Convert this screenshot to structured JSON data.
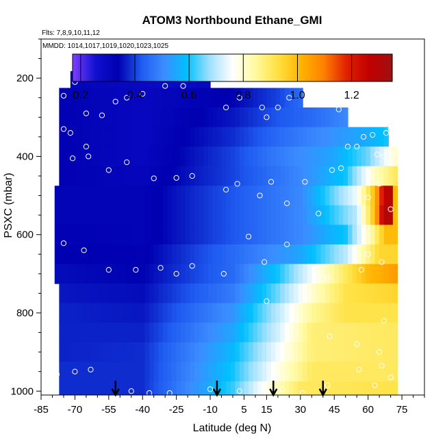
{
  "chart_data": {
    "type": "heatmap",
    "title": "ATOM3 Northbound Ethane_GMI",
    "flights_note": "Flts: 7,8,9,10,11,12",
    "dates_note": "MMDD: 1014,1017,1019,1020,1023,1025",
    "xlabel": "Latitude (deg N)",
    "ylabel": "PSXC (mbar)",
    "xlim": [
      -85,
      85
    ],
    "ylim": [
      1010,
      100
    ],
    "x_ticks": [
      -85,
      -70,
      -55,
      -40,
      -25,
      -10,
      5,
      15,
      30,
      45,
      60,
      75
    ],
    "y_ticks": [
      200,
      400,
      600,
      800,
      1000
    ],
    "colorbar": {
      "range": [
        0.17,
        1.35
      ],
      "ticks": [
        0.2,
        0.4,
        0.6,
        0.8,
        1.0,
        1.2
      ],
      "tick_labels": [
        "0.2",
        "0.4",
        "0.6",
        "0.8",
        "1.0",
        "1.2"
      ],
      "colors": [
        "#7f3fff",
        "#1010d0",
        "#0000b0",
        "#1e5af0",
        "#3c8cff",
        "#00c0ff",
        "#a0e0ff",
        "#ffffff",
        "#fffaa0",
        "#ffe040",
        "#ffb400",
        "#ff8000",
        "#e02000",
        "#c00000",
        "#a01010"
      ]
    },
    "profiles": [
      {
        "p": 200,
        "x_start": -72,
        "x_end": -10,
        "values": [
          [
            -72,
            0.32
          ],
          [
            -30,
            0.28
          ],
          [
            -10,
            0.3
          ]
        ]
      },
      {
        "p": 250,
        "x_start": -77,
        "x_end": 30,
        "values": [
          [
            -77,
            0.33
          ],
          [
            -40,
            0.3
          ],
          [
            0,
            0.34
          ],
          [
            20,
            0.4
          ],
          [
            30,
            0.45
          ]
        ]
      },
      {
        "p": 300,
        "x_start": -77,
        "x_end": 50,
        "values": [
          [
            -77,
            0.33
          ],
          [
            -40,
            0.3
          ],
          [
            0,
            0.36
          ],
          [
            20,
            0.42
          ],
          [
            35,
            0.45
          ],
          [
            50,
            0.5
          ]
        ]
      },
      {
        "p": 350,
        "x_start": -77,
        "x_end": 68,
        "values": [
          [
            -77,
            0.33
          ],
          [
            -40,
            0.3
          ],
          [
            0,
            0.38
          ],
          [
            20,
            0.45
          ],
          [
            45,
            0.52
          ],
          [
            60,
            0.56
          ],
          [
            68,
            0.6
          ]
        ]
      },
      {
        "p": 400,
        "x_start": -77,
        "x_end": 72,
        "values": [
          [
            -77,
            0.33
          ],
          [
            -40,
            0.3
          ],
          [
            0,
            0.4
          ],
          [
            20,
            0.48
          ],
          [
            45,
            0.55
          ],
          [
            60,
            0.65
          ],
          [
            72,
            0.8
          ]
        ]
      },
      {
        "p": 450,
        "x_start": -77,
        "x_end": 72,
        "values": [
          [
            -77,
            0.33
          ],
          [
            -40,
            0.31
          ],
          [
            0,
            0.4
          ],
          [
            30,
            0.5
          ],
          [
            50,
            0.6
          ],
          [
            62,
            0.8
          ],
          [
            72,
            0.9
          ]
        ]
      },
      {
        "p": 500,
        "x_start": -79,
        "x_end": 72,
        "values": [
          [
            -79,
            0.32
          ],
          [
            -40,
            0.32
          ],
          [
            0,
            0.42
          ],
          [
            30,
            0.5
          ],
          [
            55,
            0.75
          ],
          [
            63,
            1.0
          ],
          [
            67,
            1.25
          ],
          [
            70,
            1.3
          ],
          [
            72,
            1.0
          ]
        ]
      },
      {
        "p": 550,
        "x_start": -79,
        "x_end": 72,
        "values": [
          [
            -79,
            0.32
          ],
          [
            -40,
            0.32
          ],
          [
            0,
            0.42
          ],
          [
            30,
            0.5
          ],
          [
            55,
            0.7
          ],
          [
            63,
            1.0
          ],
          [
            67,
            1.3
          ],
          [
            70,
            1.3
          ],
          [
            72,
            1.0
          ]
        ]
      },
      {
        "p": 600,
        "x_start": -79,
        "x_end": 72,
        "values": [
          [
            -79,
            0.33
          ],
          [
            -40,
            0.32
          ],
          [
            0,
            0.42
          ],
          [
            30,
            0.5
          ],
          [
            50,
            0.6
          ],
          [
            62,
            0.85
          ],
          [
            68,
            1.0
          ],
          [
            72,
            1.0
          ]
        ]
      },
      {
        "p": 650,
        "x_start": -79,
        "x_end": 72,
        "values": [
          [
            -79,
            0.34
          ],
          [
            -40,
            0.33
          ],
          [
            0,
            0.45
          ],
          [
            30,
            0.55
          ],
          [
            50,
            0.7
          ],
          [
            65,
            0.95
          ],
          [
            72,
            0.95
          ]
        ]
      },
      {
        "p": 700,
        "x_start": -79,
        "x_end": 72,
        "values": [
          [
            -79,
            0.35
          ],
          [
            -40,
            0.34
          ],
          [
            0,
            0.45
          ],
          [
            20,
            0.6
          ],
          [
            40,
            0.8
          ],
          [
            60,
            1.0
          ],
          [
            72,
            1.05
          ]
        ]
      },
      {
        "p": 750,
        "x_start": -77,
        "x_end": 72,
        "values": [
          [
            -77,
            0.36
          ],
          [
            -40,
            0.35
          ],
          [
            0,
            0.48
          ],
          [
            20,
            0.65
          ],
          [
            35,
            0.8
          ],
          [
            50,
            0.92
          ],
          [
            72,
            0.95
          ]
        ]
      },
      {
        "p": 800,
        "x_start": -77,
        "x_end": 72,
        "values": [
          [
            -77,
            0.37
          ],
          [
            -40,
            0.36
          ],
          [
            0,
            0.52
          ],
          [
            20,
            0.7
          ],
          [
            35,
            0.85
          ],
          [
            50,
            0.92
          ],
          [
            72,
            0.92
          ]
        ]
      },
      {
        "p": 850,
        "x_start": -77,
        "x_end": 72,
        "values": [
          [
            -77,
            0.37
          ],
          [
            -40,
            0.37
          ],
          [
            0,
            0.55
          ],
          [
            20,
            0.72
          ],
          [
            35,
            0.88
          ],
          [
            72,
            0.9
          ]
        ]
      },
      {
        "p": 900,
        "x_start": -77,
        "x_end": 72,
        "values": [
          [
            -77,
            0.37
          ],
          [
            -40,
            0.38
          ],
          [
            0,
            0.58
          ],
          [
            20,
            0.75
          ],
          [
            35,
            0.88
          ],
          [
            72,
            0.9
          ]
        ]
      },
      {
        "p": 950,
        "x_start": -77,
        "x_end": 72,
        "values": [
          [
            -77,
            0.38
          ],
          [
            -40,
            0.38
          ],
          [
            0,
            0.6
          ],
          [
            20,
            0.78
          ],
          [
            35,
            0.9
          ],
          [
            72,
            0.9
          ]
        ]
      },
      {
        "p": 1000,
        "x_start": -77,
        "x_end": 72,
        "values": [
          [
            -77,
            0.38
          ],
          [
            -40,
            0.38
          ],
          [
            0,
            0.62
          ],
          [
            15,
            0.78
          ],
          [
            30,
            0.9
          ],
          [
            72,
            0.92
          ]
        ]
      }
    ],
    "observations": [
      [
        -70,
        210
      ],
      [
        -75,
        245
      ],
      [
        -72,
        340
      ],
      [
        -65,
        290
      ],
      [
        -58,
        295
      ],
      [
        -52,
        260
      ],
      [
        -47,
        250
      ],
      [
        -40,
        240
      ],
      [
        -30,
        220
      ],
      [
        -22,
        220
      ],
      [
        -10,
        200
      ],
      [
        -3,
        275
      ],
      [
        3,
        250
      ],
      [
        13,
        275
      ],
      [
        15,
        300
      ],
      [
        20,
        275
      ],
      [
        25,
        250
      ],
      [
        34,
        245
      ],
      [
        47,
        280
      ],
      [
        58,
        290
      ],
      [
        71,
        290
      ],
      [
        -75,
        330
      ],
      [
        -65,
        375
      ],
      [
        -71,
        405
      ],
      [
        -64,
        400
      ],
      [
        -55,
        435
      ],
      [
        -47,
        415
      ],
      [
        -35,
        456
      ],
      [
        -25,
        455
      ],
      [
        -18,
        450
      ],
      [
        -3,
        485
      ],
      [
        2,
        470
      ],
      [
        12,
        500
      ],
      [
        17,
        465
      ],
      [
        24,
        520
      ],
      [
        32,
        465
      ],
      [
        38,
        546
      ],
      [
        44,
        435
      ],
      [
        48,
        430
      ],
      [
        51,
        375
      ],
      [
        55,
        375
      ],
      [
        58,
        350
      ],
      [
        62,
        345
      ],
      [
        64,
        395
      ],
      [
        67,
        400
      ],
      [
        68,
        340
      ],
      [
        70,
        330
      ],
      [
        65,
        470
      ],
      [
        60,
        505
      ],
      [
        70,
        535
      ],
      [
        -75,
        622
      ],
      [
        -66,
        640
      ],
      [
        -55,
        690
      ],
      [
        -43,
        690
      ],
      [
        -32,
        685
      ],
      [
        -25,
        700
      ],
      [
        -18,
        680
      ],
      [
        -4,
        700
      ],
      [
        7,
        605
      ],
      [
        14,
        670
      ],
      [
        24,
        625
      ],
      [
        42,
        710
      ],
      [
        57,
        690
      ],
      [
        66,
        670
      ],
      [
        60,
        650
      ],
      [
        15,
        770
      ],
      [
        43,
        860
      ],
      [
        55,
        880
      ],
      [
        67,
        820
      ],
      [
        65,
        900
      ],
      [
        66,
        935
      ],
      [
        -78,
        957
      ],
      [
        -70,
        950
      ],
      [
        -63,
        945
      ],
      [
        -45,
        1000
      ],
      [
        -37,
        1005
      ],
      [
        -28,
        1005
      ],
      [
        -10,
        995
      ],
      [
        3,
        1000
      ],
      [
        15,
        995
      ],
      [
        22,
        995
      ],
      [
        31,
        1005
      ],
      [
        42,
        985
      ],
      [
        56,
        945
      ],
      [
        63,
        985
      ],
      [
        70,
        965
      ]
    ],
    "arrows": [
      -52,
      -7,
      18,
      40
    ]
  }
}
